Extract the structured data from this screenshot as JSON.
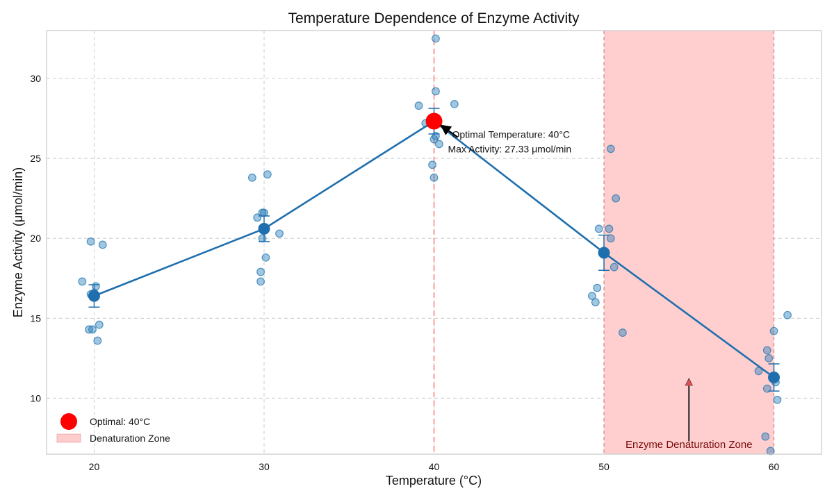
{
  "chart_data": {
    "type": "scatter",
    "title": "Temperature Dependence of Enzyme Activity",
    "xlabel": "Temperature (°C)",
    "ylabel": "Enzyme Activity (μmol/min)",
    "xlim": [
      17.2,
      62.8
    ],
    "ylim": [
      6.5,
      33.0
    ],
    "xticks": [
      20,
      30,
      40,
      50,
      60
    ],
    "yticks": [
      10,
      15,
      20,
      25,
      30
    ],
    "grid": true,
    "colors": {
      "series": "#1f77b4",
      "mean_line": "#1f6fae",
      "optimal": "#ff0000",
      "zone_fill": "#ffcccc",
      "zone_edge": "#d98080",
      "zone_text": "#7a0b0b",
      "arrow": "#e05050"
    },
    "raw_points": [
      {
        "x": 19.3,
        "y": 17.3
      },
      {
        "x": 19.8,
        "y": 19.8
      },
      {
        "x": 20.5,
        "y": 19.6
      },
      {
        "x": 19.8,
        "y": 16.5
      },
      {
        "x": 20.1,
        "y": 17.0
      },
      {
        "x": 20.0,
        "y": 16.6
      },
      {
        "x": 19.9,
        "y": 14.3
      },
      {
        "x": 19.7,
        "y": 14.3
      },
      {
        "x": 20.3,
        "y": 14.6
      },
      {
        "x": 20.2,
        "y": 13.6
      },
      {
        "x": 29.3,
        "y": 23.8
      },
      {
        "x": 30.2,
        "y": 24.0
      },
      {
        "x": 29.6,
        "y": 21.3
      },
      {
        "x": 29.9,
        "y": 21.6
      },
      {
        "x": 30.0,
        "y": 21.6
      },
      {
        "x": 29.9,
        "y": 20.0
      },
      {
        "x": 30.9,
        "y": 20.3
      },
      {
        "x": 30.1,
        "y": 18.8
      },
      {
        "x": 29.8,
        "y": 17.9
      },
      {
        "x": 29.8,
        "y": 17.3
      },
      {
        "x": 40.1,
        "y": 32.5
      },
      {
        "x": 40.1,
        "y": 29.2
      },
      {
        "x": 39.1,
        "y": 28.3
      },
      {
        "x": 41.2,
        "y": 28.4
      },
      {
        "x": 39.5,
        "y": 27.2
      },
      {
        "x": 40.0,
        "y": 26.2
      },
      {
        "x": 40.1,
        "y": 26.4
      },
      {
        "x": 39.9,
        "y": 24.6
      },
      {
        "x": 40.0,
        "y": 23.8
      },
      {
        "x": 40.3,
        "y": 25.9
      },
      {
        "x": 50.4,
        "y": 25.6
      },
      {
        "x": 50.7,
        "y": 22.5
      },
      {
        "x": 49.7,
        "y": 20.6
      },
      {
        "x": 50.3,
        "y": 20.6
      },
      {
        "x": 50.4,
        "y": 20.0
      },
      {
        "x": 50.6,
        "y": 18.2
      },
      {
        "x": 49.6,
        "y": 16.9
      },
      {
        "x": 49.3,
        "y": 16.4
      },
      {
        "x": 49.5,
        "y": 16.0
      },
      {
        "x": 51.1,
        "y": 14.1
      },
      {
        "x": 60.8,
        "y": 15.2
      },
      {
        "x": 60.0,
        "y": 14.2
      },
      {
        "x": 59.6,
        "y": 13.0
      },
      {
        "x": 59.7,
        "y": 12.5
      },
      {
        "x": 59.1,
        "y": 11.7
      },
      {
        "x": 59.6,
        "y": 10.6
      },
      {
        "x": 60.2,
        "y": 9.9
      },
      {
        "x": 59.5,
        "y": 7.6
      },
      {
        "x": 59.8,
        "y": 6.7
      },
      {
        "x": 60.1,
        "y": 11.0
      }
    ],
    "mean_series": {
      "x": [
        20,
        30,
        40,
        50,
        60
      ],
      "y": [
        16.4,
        20.6,
        27.33,
        19.1,
        11.3
      ],
      "error": [
        0.7,
        0.8,
        0.8,
        1.1,
        0.85
      ]
    },
    "optimal": {
      "x": 40,
      "y": 27.33
    },
    "annotation": {
      "line1": "Optimal Temperature: 40°C",
      "line2": "Max Activity: 27.33 μmol/min",
      "text_x": 40.9,
      "text_y": 26.2
    },
    "optimal_vline_x": 40,
    "denaturation_zone": {
      "x_start": 50,
      "x_end": 60
    },
    "zone_label": "Enzyme Denaturation Zone",
    "zone_label_x": 55,
    "zone_label_y": 6.9,
    "zone_arrow": {
      "x": 55,
      "y_from": 7.3,
      "y_to": 11.2
    },
    "legend": {
      "position": "lower-left",
      "entries": [
        {
          "label": "Optimal: 40°C",
          "kind": "marker"
        },
        {
          "label": "Denaturation Zone",
          "kind": "patch"
        }
      ]
    }
  }
}
